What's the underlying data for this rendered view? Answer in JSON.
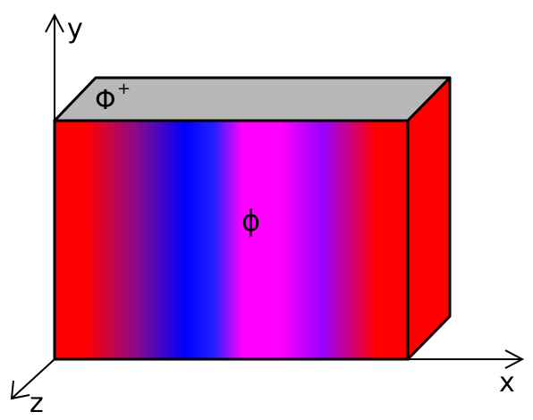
{
  "axes": {
    "y_label": "y",
    "x_label": "x",
    "z_label": "z"
  },
  "labels": {
    "top_face": "Φ",
    "top_face_superscript": "+",
    "front_face": "ϕ"
  },
  "colors": {
    "red": "#ff0000",
    "blue": "#0000ff",
    "magenta": "#ff00ff",
    "violet": "#9900ff",
    "top_face_gray": "#b8b8b8",
    "outline": "#000000"
  }
}
